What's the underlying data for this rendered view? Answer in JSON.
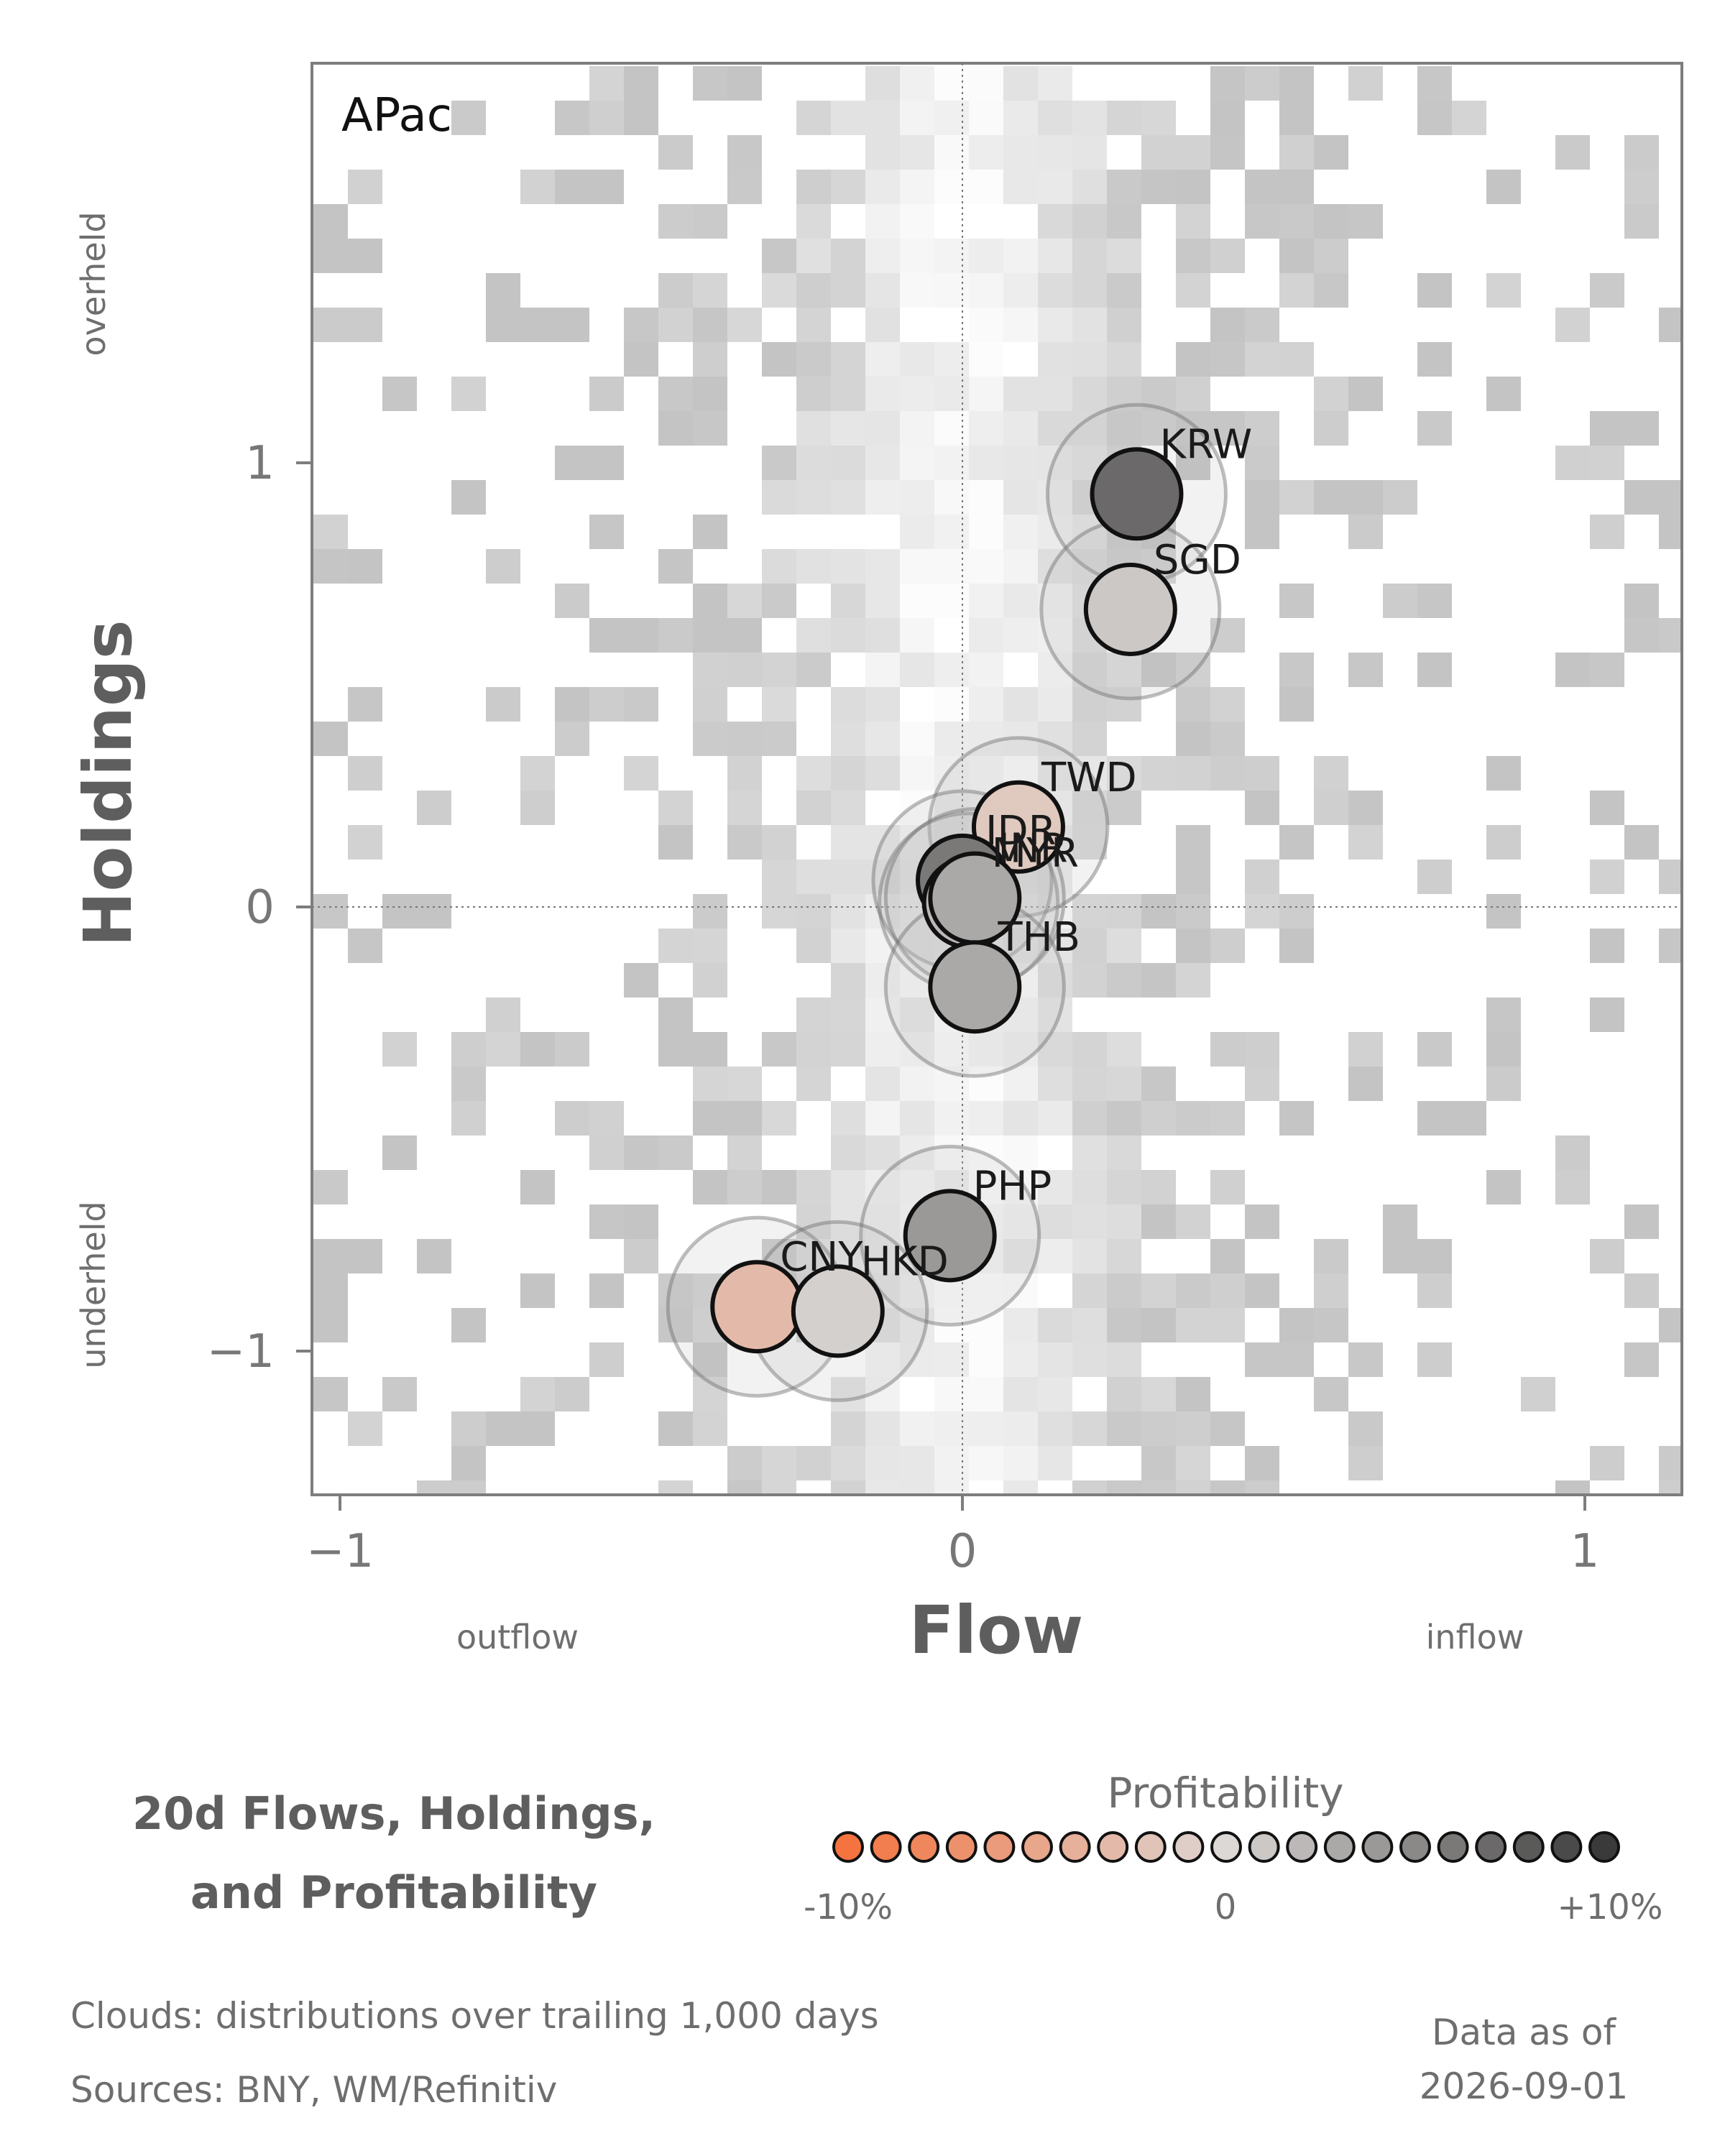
{
  "chart_data": {
    "type": "scatter",
    "region": "APac",
    "xlabel": "Flow",
    "ylabel": "Holdings",
    "x_low_note": "outflow",
    "x_high_note": "inflow",
    "y_high_note": "overheld",
    "y_low_note": "underheld",
    "xlim": [
      -1.05,
      1.15
    ],
    "ylim": [
      -1.32,
      1.9
    ],
    "x_ticks": [
      {
        "value": -1,
        "label": "−1"
      },
      {
        "value": 0,
        "label": "0"
      },
      {
        "value": 1,
        "label": "1"
      }
    ],
    "y_ticks": [
      {
        "value": -1,
        "label": "−1"
      },
      {
        "value": 0,
        "label": "0"
      },
      {
        "value": 1,
        "label": "1"
      }
    ],
    "reference_lines": {
      "x": 0,
      "y": 0
    },
    "background": "grey density clouds (distributions over trailing 1,000 days)",
    "points": [
      {
        "label": "KRW",
        "x": 0.28,
        "y": 0.93,
        "profitability": 7
      },
      {
        "label": "SGD",
        "x": 0.27,
        "y": 0.67,
        "profitability": 1
      },
      {
        "label": "TWD",
        "x": 0.09,
        "y": 0.18,
        "profitability": -1.5
      },
      {
        "label": "IDR",
        "x": 0.0,
        "y": 0.06,
        "profitability": 6
      },
      {
        "label": "MYR",
        "x": 0.01,
        "y": 0.01,
        "profitability": 2
      },
      {
        "label": "INR",
        "x": 0.02,
        "y": 0.02,
        "profitability": 3
      },
      {
        "label": "THB",
        "x": 0.02,
        "y": -0.18,
        "profitability": 3
      },
      {
        "label": "PHP",
        "x": -0.02,
        "y": -0.74,
        "profitability": 4
      },
      {
        "label": "CNY",
        "x": -0.33,
        "y": -0.9,
        "profitability": -3
      },
      {
        "label": "HKD",
        "x": -0.2,
        "y": -0.91,
        "profitability": 0.5
      }
    ],
    "colorscale": {
      "title": "Profitability",
      "min_label": "-10%",
      "mid_label": "0",
      "max_label": "+10%",
      "low_color": "#f4733f",
      "mid_color": "#dcd8d6",
      "high_color": "#3a3a3a",
      "steps": 21
    }
  },
  "title_lines": [
    "20d Flows, Holdings,",
    "and Profitability"
  ],
  "footer": {
    "clouds": "Clouds:  distributions over trailing 1,000 days",
    "sources": "Sources:  BNY, WM/Refinitiv",
    "asof_label": "Data as of",
    "asof_date": "2026-09-01"
  }
}
